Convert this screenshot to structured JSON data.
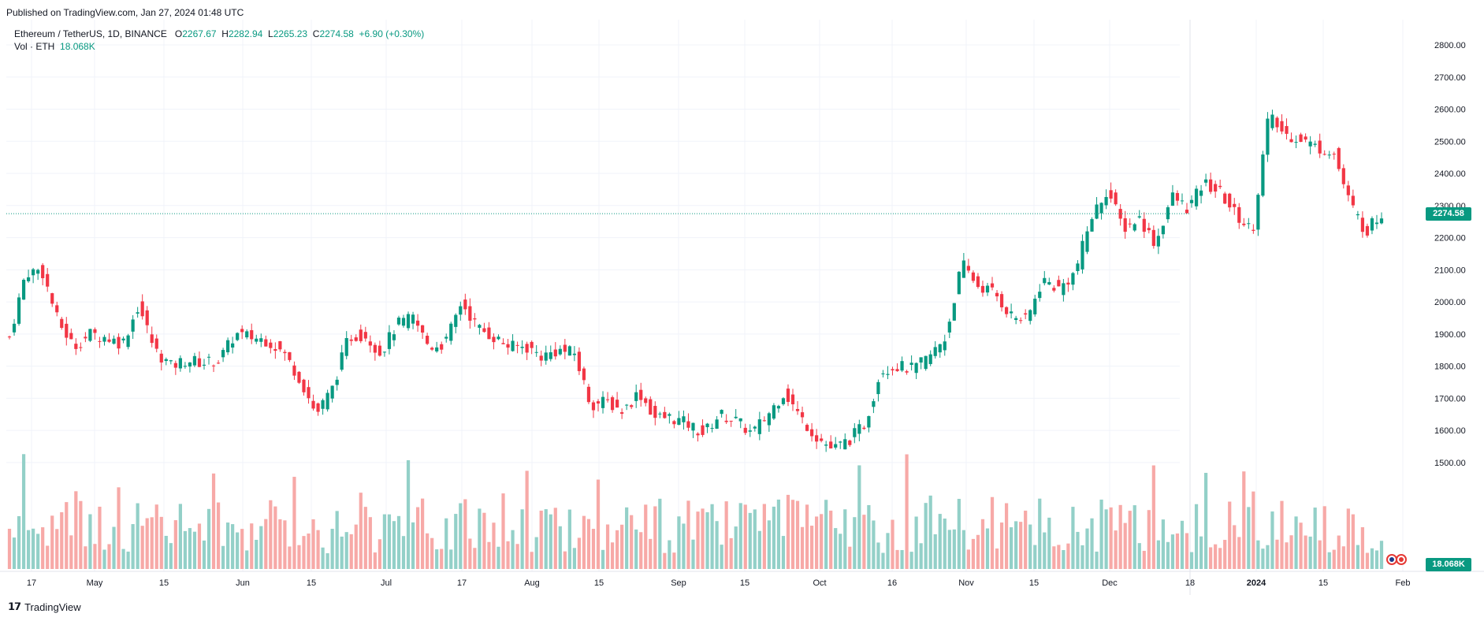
{
  "header": {
    "published": "Published on TradingView.com, Jan 27, 2024 01:48 UTC"
  },
  "legend": {
    "symbol": "Ethereum / TetherUS, 1D, BINANCE",
    "o_key": "O",
    "o": "2267.67",
    "h_key": "H",
    "h": "2282.94",
    "l_key": "L",
    "l": "2265.23",
    "c_key": "C",
    "c": "2274.58",
    "change": "+6.90 (+0.30%)",
    "vol_label": "Vol · ETH",
    "vol_value": "18.068K"
  },
  "price_tag": "2274.58",
  "volume_tag": "18.068K",
  "footer": {
    "brand": "TradingView",
    "logo_icon": "tradingview-logo-icon"
  },
  "colors": {
    "up": "#089981",
    "down": "#f23645",
    "up_vol": "#93d0c8",
    "down_vol": "#f7a9a7",
    "grid": "#f0f3fa"
  },
  "chart_data": {
    "type": "candlestick",
    "title": "Ethereum / TetherUS, 1D, BINANCE",
    "ylim": [
      1450,
      2820
    ],
    "y_ticks": [
      "2800.00",
      "2700.00",
      "2600.00",
      "2500.00",
      "2400.00",
      "2300.00",
      "2200.00",
      "2100.00",
      "2000.00",
      "1900.00",
      "1800.00",
      "1700.00",
      "1600.00",
      "1500.00"
    ],
    "x_ticks": [
      "17",
      "May",
      "15",
      "Jun",
      "15",
      "Jul",
      "17",
      "Aug",
      "15",
      "Sep",
      "15",
      "Oct",
      "16",
      "Nov",
      "15",
      "Dec",
      "18",
      "2024",
      "15",
      "Feb"
    ],
    "grid": true,
    "last_price": 2274.58,
    "series": [
      {
        "name": "ETH/USDT",
        "close_points": [
          [
            "Apr 12",
            1890
          ],
          [
            "Apr 15",
            2090
          ],
          [
            "Apr 18",
            2100
          ],
          [
            "Apr 20",
            1940
          ],
          [
            "Apr 23",
            1860
          ],
          [
            "Apr 26",
            1900
          ],
          [
            "Apr 29",
            1890
          ],
          [
            "May 2",
            1870
          ],
          [
            "May 5",
            1990
          ],
          [
            "May 8",
            1850
          ],
          [
            "May 12",
            1800
          ],
          [
            "May 15",
            1820
          ],
          [
            "May 20",
            1810
          ],
          [
            "May 25",
            1820
          ],
          [
            "May 29",
            1900
          ],
          [
            "Jun 1",
            1890
          ],
          [
            "Jun 5",
            1880
          ],
          [
            "Jun 9",
            1840
          ],
          [
            "Jun 12",
            1760
          ],
          [
            "Jun 15",
            1650
          ],
          [
            "Jun 18",
            1730
          ],
          [
            "Jun 21",
            1890
          ],
          [
            "Jun 25",
            1900
          ],
          [
            "Jun 28",
            1840
          ],
          [
            "Jul 2",
            1930
          ],
          [
            "Jul 5",
            1950
          ],
          [
            "Jul 8",
            1860
          ],
          [
            "Jul 11",
            1870
          ],
          [
            "Jul 13",
            2000
          ],
          [
            "Jul 16",
            1920
          ],
          [
            "Jul 20",
            1890
          ],
          [
            "Jul 25",
            1860
          ],
          [
            "Aug 1",
            1860
          ],
          [
            "Aug 5",
            1830
          ],
          [
            "Aug 10",
            1850
          ],
          [
            "Aug 14",
            1840
          ],
          [
            "Aug 17",
            1680
          ],
          [
            "Aug 20",
            1690
          ],
          [
            "Aug 25",
            1660
          ],
          [
            "Aug 29",
            1720
          ],
          [
            "Sep 1",
            1640
          ],
          [
            "Sep 5",
            1640
          ],
          [
            "Sep 10",
            1620
          ],
          [
            "Sep 12",
            1590
          ],
          [
            "Sep 15",
            1650
          ],
          [
            "Sep 20",
            1630
          ],
          [
            "Sep 25",
            1590
          ],
          [
            "Sep 28",
            1650
          ],
          [
            "Oct 2",
            1720
          ],
          [
            "Oct 5",
            1640
          ],
          [
            "Oct 9",
            1580
          ],
          [
            "Oct 12",
            1540
          ],
          [
            "Oct 16",
            1570
          ],
          [
            "Oct 20",
            1620
          ],
          [
            "Oct 23",
            1790
          ],
          [
            "Oct 26",
            1800
          ],
          [
            "Oct 30",
            1790
          ],
          [
            "Nov 2",
            1830
          ],
          [
            "Nov 6",
            1890
          ],
          [
            "Nov 9",
            2120
          ],
          [
            "Nov 12",
            2050
          ],
          [
            "Nov 15",
            2030
          ],
          [
            "Nov 18",
            1960
          ],
          [
            "Nov 21",
            1940
          ],
          [
            "Nov 24",
            2070
          ],
          [
            "Nov 28",
            2040
          ],
          [
            "Dec 1",
            2090
          ],
          [
            "Dec 5",
            2260
          ],
          [
            "Dec 8",
            2350
          ],
          [
            "Dec 11",
            2230
          ],
          [
            "Dec 15",
            2260
          ],
          [
            "Dec 18",
            2180
          ],
          [
            "Dec 22",
            2330
          ],
          [
            "Dec 25",
            2290
          ],
          [
            "Dec 28",
            2370
          ],
          [
            "Jan 1",
            2340
          ],
          [
            "Jan 4",
            2270
          ],
          [
            "Jan 7",
            2220
          ],
          [
            "Jan 10",
            2580
          ],
          [
            "Jan 12",
            2520
          ],
          [
            "Jan 15",
            2510
          ],
          [
            "Jan 18",
            2480
          ],
          [
            "Jan 20",
            2470
          ],
          [
            "Jan 22",
            2310
          ],
          [
            "Jan 24",
            2220
          ],
          [
            "Jan 27",
            2274.58
          ]
        ]
      }
    ]
  }
}
